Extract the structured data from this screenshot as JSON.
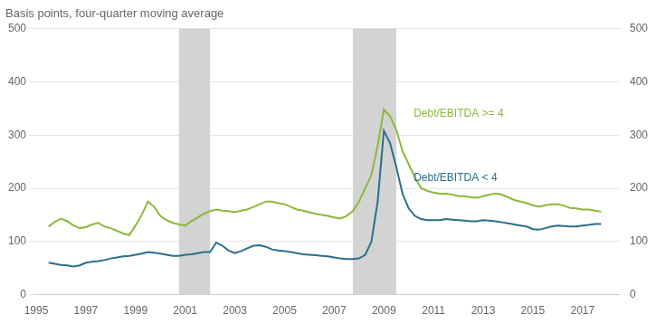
{
  "chart_data": {
    "type": "line",
    "title": "Basis points, four-quarter moving average",
    "x": [
      1995.5,
      1995.75,
      1996.0,
      1996.25,
      1996.5,
      1996.75,
      1997.0,
      1997.25,
      1997.5,
      1997.75,
      1998.0,
      1998.25,
      1998.5,
      1998.75,
      1999.0,
      1999.25,
      1999.5,
      1999.75,
      2000.0,
      2000.25,
      2000.5,
      2000.75,
      2001.0,
      2001.25,
      2001.5,
      2001.75,
      2002.0,
      2002.25,
      2002.5,
      2002.75,
      2003.0,
      2003.25,
      2003.5,
      2003.75,
      2004.0,
      2004.25,
      2004.5,
      2004.75,
      2005.0,
      2005.25,
      2005.5,
      2005.75,
      2006.0,
      2006.25,
      2006.5,
      2006.75,
      2007.0,
      2007.25,
      2007.5,
      2007.75,
      2008.0,
      2008.25,
      2008.5,
      2008.75,
      2009.0,
      2009.25,
      2009.5,
      2009.75,
      2010.0,
      2010.25,
      2010.5,
      2010.75,
      2011.0,
      2011.25,
      2011.5,
      2011.75,
      2012.0,
      2012.25,
      2012.5,
      2012.75,
      2013.0,
      2013.25,
      2013.5,
      2013.75,
      2014.0,
      2014.25,
      2014.5,
      2014.75,
      2015.0,
      2015.25,
      2015.5,
      2015.75,
      2016.0,
      2016.25,
      2016.5,
      2016.75,
      2017.0,
      2017.25,
      2017.5,
      2017.75
    ],
    "series": [
      {
        "name": "Debt/EBITDA >= 4",
        "color": "#8db83a",
        "values": [
          128,
          137,
          143,
          138,
          130,
          125,
          127,
          132,
          135,
          128,
          125,
          120,
          115,
          112,
          130,
          150,
          175,
          165,
          148,
          140,
          135,
          132,
          130,
          138,
          145,
          152,
          157,
          160,
          158,
          157,
          155,
          158,
          160,
          165,
          170,
          175,
          175,
          172,
          170,
          165,
          160,
          158,
          155,
          152,
          150,
          148,
          145,
          143,
          148,
          157,
          175,
          200,
          225,
          280,
          348,
          335,
          310,
          270,
          245,
          220,
          200,
          195,
          192,
          190,
          190,
          188,
          185,
          185,
          183,
          182,
          185,
          188,
          190,
          188,
          183,
          178,
          175,
          172,
          168,
          165,
          168,
          170,
          170,
          167,
          163,
          162,
          160,
          160,
          158,
          156
        ]
      },
      {
        "name": "Debt/EBITDA < 4",
        "color": "#2a6e8c",
        "values": [
          60,
          58,
          56,
          55,
          53,
          55,
          60,
          62,
          63,
          65,
          68,
          70,
          72,
          73,
          75,
          77,
          80,
          79,
          77,
          75,
          73,
          73,
          75,
          76,
          78,
          80,
          80,
          98,
          92,
          83,
          78,
          82,
          87,
          92,
          93,
          90,
          85,
          83,
          82,
          80,
          78,
          76,
          75,
          74,
          73,
          72,
          70,
          68,
          67,
          67,
          68,
          75,
          100,
          175,
          308,
          285,
          240,
          190,
          162,
          148,
          142,
          140,
          140,
          140,
          142,
          141,
          140,
          139,
          138,
          138,
          140,
          139,
          138,
          136,
          134,
          132,
          130,
          128,
          123,
          122,
          125,
          128,
          130,
          129,
          128,
          128,
          130,
          131,
          133,
          133
        ]
      }
    ],
    "annotations": [
      {
        "text": "Debt/EBITDA >= 4",
        "x": 2010.2,
        "y": 340,
        "color": "#8db83a"
      },
      {
        "text": "Debt/EBITDA < 4",
        "x": 2010.2,
        "y": 220,
        "color": "#2a6e8c"
      }
    ],
    "shaded_x_ranges": [
      {
        "x0": 2000.75,
        "x1": 2002.0,
        "color": "#d3d3d3"
      },
      {
        "x0": 2007.75,
        "x1": 2009.5,
        "color": "#d3d3d3"
      }
    ],
    "xlim": [
      1995,
      2018.5
    ],
    "xticks": [
      1995,
      1997,
      1999,
      2001,
      2003,
      2005,
      2007,
      2009,
      2011,
      2013,
      2015,
      2017
    ],
    "ylim": [
      0,
      500
    ],
    "yticks": [
      0,
      100,
      200,
      300,
      400,
      500
    ],
    "y2lim": [
      0,
      500
    ],
    "y2ticks": [
      0,
      100,
      200,
      300,
      400,
      500
    ],
    "grid": true
  }
}
